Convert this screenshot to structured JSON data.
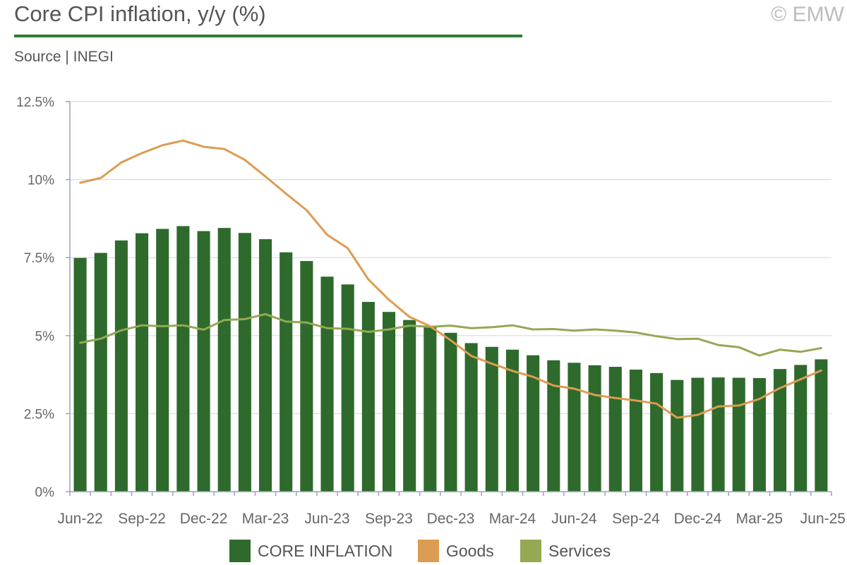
{
  "header": {
    "title": "Core CPI inflation, y/y (%)",
    "source": "Source | INEGI",
    "copyright": "© EMW"
  },
  "colors": {
    "core": "#2e6a2c",
    "goods": "#dc9c52",
    "services": "#95a853",
    "grid": "#dde3ee",
    "axis": "#9aa3b5",
    "rule": "#2e7d32"
  },
  "chart_data": {
    "type": "bar",
    "ylim": [
      0,
      12.5
    ],
    "yticks": [
      {
        "value": 0,
        "label": "0%"
      },
      {
        "value": 2.5,
        "label": "2.5%"
      },
      {
        "value": 5,
        "label": "5%"
      },
      {
        "value": 7.5,
        "label": "7.5%"
      },
      {
        "value": 10,
        "label": "10%"
      },
      {
        "value": 12.5,
        "label": "12.5%"
      }
    ],
    "grid": true,
    "legend_position": "bottom",
    "categories": [
      "Jun-22",
      "Jul-22",
      "Aug-22",
      "Sep-22",
      "Oct-22",
      "Nov-22",
      "Dec-22",
      "Jan-23",
      "Feb-23",
      "Mar-23",
      "Apr-23",
      "May-23",
      "Jun-23",
      "Jul-23",
      "Aug-23",
      "Sep-23",
      "Oct-23",
      "Nov-23",
      "Dec-23",
      "Jan-24",
      "Feb-24",
      "Mar-24",
      "Apr-24",
      "May-24",
      "Jun-24",
      "Jul-24",
      "Aug-24",
      "Sep-24",
      "Oct-24",
      "Nov-24",
      "Dec-24",
      "Jan-25",
      "Feb-25",
      "Mar-25",
      "Apr-25",
      "May-25",
      "Jun-25"
    ],
    "tick_labels": [
      "Jun-22",
      "Sep-22",
      "Dec-22",
      "Mar-23",
      "Jun-23",
      "Sep-23",
      "Dec-23",
      "Mar-24",
      "Jun-24",
      "Sep-24",
      "Dec-24",
      "Mar-25",
      "Jun-25"
    ],
    "series": [
      {
        "name": "CORE INFLATION",
        "kind": "bar",
        "values": [
          7.49,
          7.65,
          8.05,
          8.28,
          8.42,
          8.51,
          8.35,
          8.45,
          8.29,
          8.09,
          7.67,
          7.39,
          6.89,
          6.64,
          6.08,
          5.76,
          5.5,
          5.3,
          5.09,
          4.76,
          4.64,
          4.55,
          4.37,
          4.21,
          4.13,
          4.05,
          4.0,
          3.91,
          3.8,
          3.58,
          3.65,
          3.66,
          3.65,
          3.64,
          3.93,
          4.06,
          4.24
        ]
      },
      {
        "name": "Goods",
        "kind": "line",
        "values": [
          9.9,
          10.05,
          10.55,
          10.85,
          11.1,
          11.25,
          11.05,
          10.98,
          10.63,
          10.1,
          9.55,
          9.02,
          8.23,
          7.8,
          6.8,
          6.15,
          5.6,
          5.3,
          4.85,
          4.35,
          4.1,
          3.87,
          3.68,
          3.4,
          3.3,
          3.1,
          3.0,
          2.92,
          2.82,
          2.37,
          2.46,
          2.73,
          2.76,
          2.97,
          3.32,
          3.6,
          3.88
        ]
      },
      {
        "name": "Services",
        "kind": "line",
        "values": [
          4.77,
          4.9,
          5.17,
          5.33,
          5.3,
          5.33,
          5.19,
          5.5,
          5.53,
          5.69,
          5.45,
          5.42,
          5.24,
          5.22,
          5.12,
          5.2,
          5.32,
          5.28,
          5.32,
          5.24,
          5.27,
          5.33,
          5.2,
          5.21,
          5.16,
          5.2,
          5.16,
          5.1,
          4.98,
          4.89,
          4.9,
          4.7,
          4.63,
          4.36,
          4.55,
          4.48,
          4.6
        ]
      }
    ]
  }
}
